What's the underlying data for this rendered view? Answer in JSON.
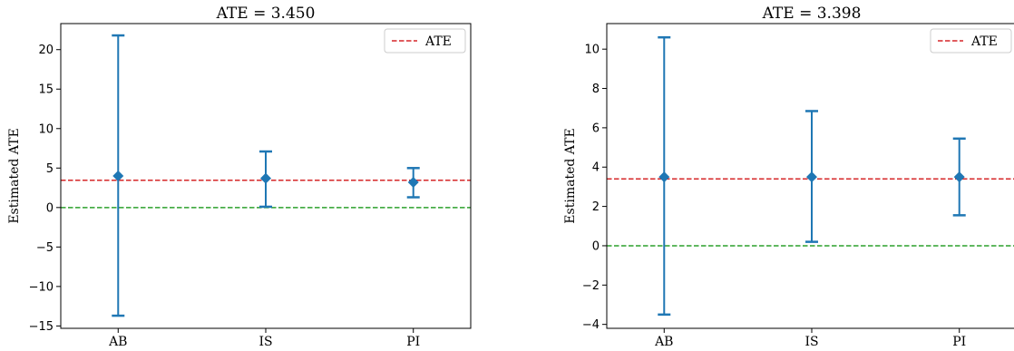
{
  "chart_data": [
    {
      "type": "errorbar",
      "title": "ATE = 3.450",
      "xlabel": "",
      "ylabel": "Estimated ATE",
      "categories": [
        "AB",
        "IS",
        "PI"
      ],
      "estimates": [
        4.0,
        3.7,
        3.2
      ],
      "lower": [
        -13.7,
        0.1,
        1.3
      ],
      "upper": [
        21.8,
        7.1,
        5.0
      ],
      "ylim": [
        -15.3,
        23.3
      ],
      "yticks": [
        -15,
        -10,
        -5,
        0,
        5,
        10,
        15,
        20
      ],
      "reference_lines": [
        {
          "label": "ATE",
          "value": 3.45,
          "color": "#d62728",
          "style": "dashed",
          "legend": true
        },
        {
          "label": "",
          "value": 0,
          "color": "#2ca02c",
          "style": "dashed",
          "legend": false
        }
      ],
      "legend": {
        "entries": [
          "ATE"
        ],
        "position": "top-right"
      },
      "series_color": "#1f77b4"
    },
    {
      "type": "errorbar",
      "title": "ATE = 3.398",
      "xlabel": "",
      "ylabel": "Estimated ATE",
      "categories": [
        "AB",
        "IS",
        "PI"
      ],
      "estimates": [
        3.5,
        3.5,
        3.5
      ],
      "lower": [
        -3.5,
        0.2,
        1.55
      ],
      "upper": [
        10.6,
        6.85,
        5.45
      ],
      "ylim": [
        -4.2,
        11.3
      ],
      "yticks": [
        -4,
        -2,
        0,
        2,
        4,
        6,
        8,
        10
      ],
      "reference_lines": [
        {
          "label": "ATE",
          "value": 3.398,
          "color": "#d62728",
          "style": "dashed",
          "legend": true
        },
        {
          "label": "",
          "value": 0,
          "color": "#2ca02c",
          "style": "dashed",
          "legend": false
        }
      ],
      "legend": {
        "entries": [
          "ATE"
        ],
        "position": "top-right"
      },
      "series_color": "#1f77b4"
    }
  ]
}
